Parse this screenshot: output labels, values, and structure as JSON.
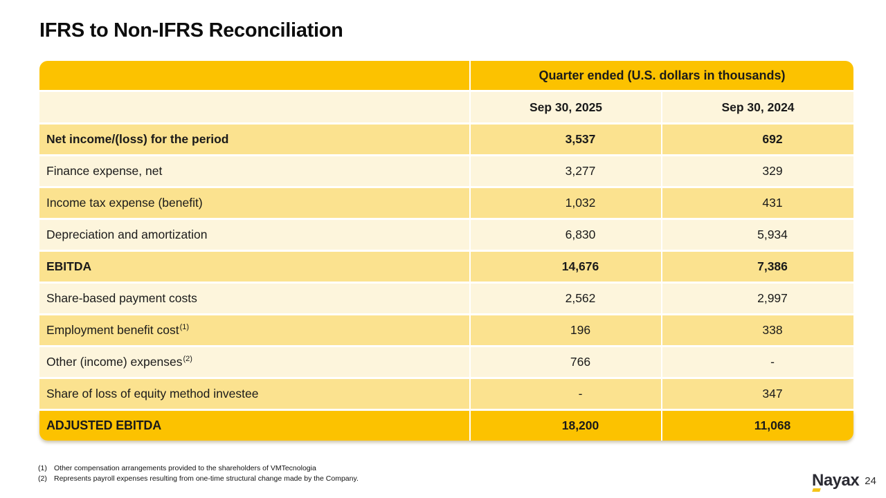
{
  "slide": {
    "title": "IFRS to Non-IFRS Reconciliation",
    "page_number": "24",
    "logo_text": "Nayax"
  },
  "table": {
    "header": "Quarter ended (U.S. dollars in thousands)",
    "columns": [
      "Sep 30, 2025",
      "Sep 30, 2024"
    ],
    "rows": [
      {
        "label": "Net income/(loss) for the period",
        "sup": "",
        "v2025": "3,537",
        "v2024": "692",
        "bold": true
      },
      {
        "label": "Finance expense, net",
        "sup": "",
        "v2025": "3,277",
        "v2024": "329",
        "bold": false
      },
      {
        "label": "Income tax expense (benefit)",
        "sup": "",
        "v2025": "1,032",
        "v2024": "431",
        "bold": false
      },
      {
        "label": "Depreciation and amortization",
        "sup": "",
        "v2025": "6,830",
        "v2024": "5,934",
        "bold": false
      },
      {
        "label": "EBITDA",
        "sup": "",
        "v2025": "14,676",
        "v2024": "7,386",
        "bold": true
      },
      {
        "label": "Share-based payment costs",
        "sup": "",
        "v2025": "2,562",
        "v2024": "2,997",
        "bold": false
      },
      {
        "label": "Employment benefit cost",
        "sup": "(1)",
        "v2025": "196",
        "v2024": "338",
        "bold": false
      },
      {
        "label": "Other (income) expenses",
        "sup": "(2)",
        "v2025": "766",
        "v2024": "-",
        "bold": false
      },
      {
        "label": "Share of loss of equity method investee",
        "sup": "",
        "v2025": "-",
        "v2024": "347",
        "bold": false
      }
    ],
    "total_row": {
      "label": "ADJUSTED EBITDA",
      "v2025": "18,200",
      "v2024": "11,068"
    }
  },
  "footnotes": [
    {
      "marker": "(1)",
      "text": "Other compensation arrangements provided to the shareholders of VMTecnologia"
    },
    {
      "marker": "(2)",
      "text": "Represents payroll expenses resulting from one-time structural change made by the Company."
    }
  ],
  "colors": {
    "gold": "#FCC200",
    "row_alt": "#FBE28F",
    "row_cream": "#FDF5DC",
    "text": "#1A1A1A",
    "logo": "#2B2B33",
    "logo_accent": "#F5C518"
  }
}
